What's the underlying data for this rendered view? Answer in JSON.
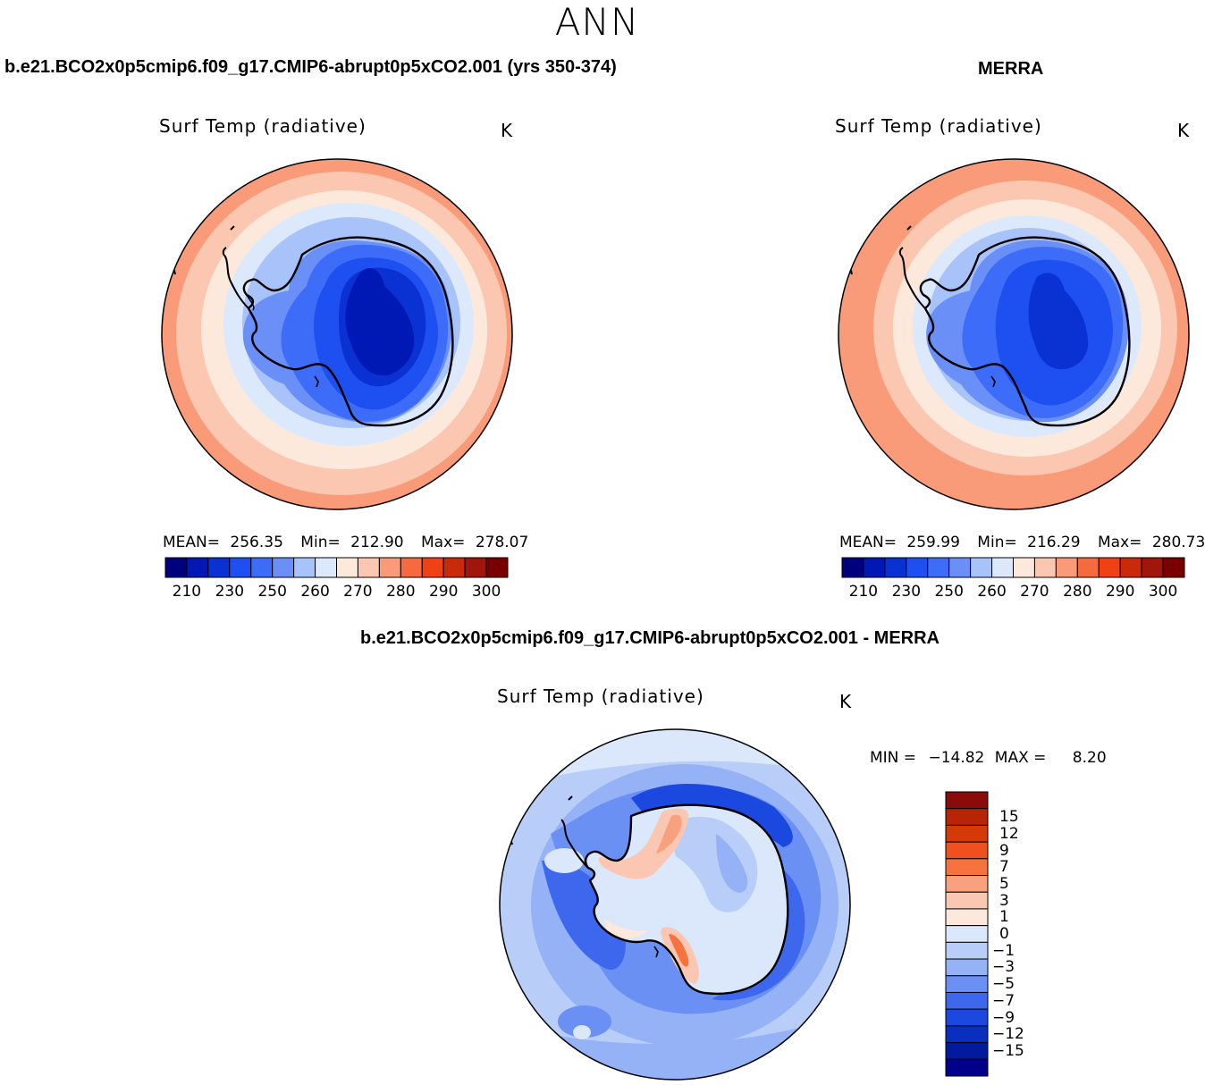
{
  "season": "ANN",
  "panels": {
    "model": {
      "title": "b.e21.BCO2x0p5cmip6.f09_g17.CMIP6-abrupt0p5xCO2.001 (yrs 350-374)",
      "variable": "Surf Temp (radiative)",
      "unit": "K",
      "stats": {
        "mean_label": "MEAN=",
        "mean": "256.35",
        "min_label": "Min=",
        "min": "212.90",
        "max_label": "Max=",
        "max": "278.07"
      }
    },
    "obs": {
      "title": "MERRA",
      "variable": "Surf Temp (radiative)",
      "unit": "K",
      "stats": {
        "mean_label": "MEAN=",
        "mean": "259.99",
        "min_label": "Min=",
        "min": "216.29",
        "max_label": "Max=",
        "max": "280.73"
      }
    },
    "diff": {
      "title": "b.e21.BCO2x0p5cmip6.f09_g17.CMIP6-abrupt0p5xCO2.001 - MERRA",
      "variable": "Surf Temp (radiative)",
      "unit": "K",
      "stats": {
        "min_label": "MIN =",
        "min": "−14.82",
        "max_label": "MAX =",
        "max": "8.20"
      }
    }
  },
  "colorbars": {
    "abs": {
      "colors": [
        "#00007f",
        "#0018b4",
        "#0a32d2",
        "#1e4ff0",
        "#3c6cf8",
        "#6a90f8",
        "#a8c2fa",
        "#dce9fc",
        "#fde9db",
        "#fcc7b0",
        "#f99a78",
        "#f56a3e",
        "#f04116",
        "#c82a0a",
        "#a0160a",
        "#7a0000"
      ],
      "ticks": [
        "210",
        "230",
        "250",
        "260",
        "270",
        "280",
        "290",
        "300"
      ]
    },
    "diff": {
      "colors": [
        "#8b0a0a",
        "#b82406",
        "#d43a08",
        "#f0501e",
        "#f6733e",
        "#f9a07e",
        "#fcc7b2",
        "#fde8dc",
        "#dbe8fb",
        "#b8cdf8",
        "#94b2f5",
        "#6b90f3",
        "#3d68ee",
        "#1b48de",
        "#0a2fc0",
        "#011a9e",
        "#00008a"
      ],
      "ticks": [
        "15",
        "12",
        "9",
        "7",
        "5",
        "3",
        "1",
        "0",
        "−1",
        "−3",
        "−5",
        "−7",
        "−9",
        "−12",
        "−15"
      ]
    }
  }
}
